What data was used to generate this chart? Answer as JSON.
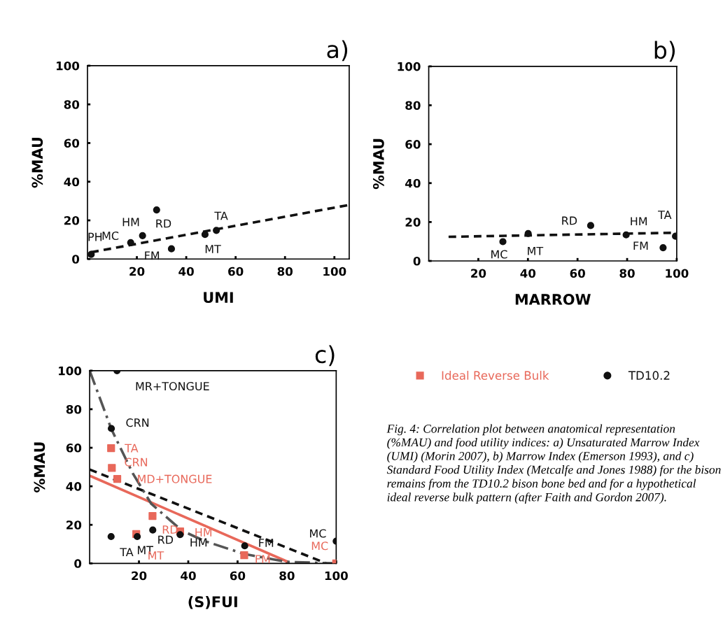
{
  "chart_data": [
    {
      "type": "scatter",
      "title": "a)",
      "xlabel": "UMI",
      "ylabel": "%MAU",
      "xlim": [
        0,
        106
      ],
      "xticks": [
        20,
        40,
        60,
        80,
        100
      ],
      "ylim": [
        0,
        100
      ],
      "yticks": [
        0,
        20,
        40,
        60,
        80,
        100
      ],
      "grid": false,
      "series": [
        {
          "type": "scatter",
          "color": "#111111",
          "marker": "circle",
          "x": [
            1.5,
            17.5,
            22.3,
            28,
            34,
            47.6,
            52.2
          ],
          "values": [
            2.4,
            8.5,
            12.1,
            25.4,
            5.3,
            12.7,
            14.8
          ]
        },
        {
          "type": "line",
          "color": "#111111",
          "line_style": "dashed",
          "x": [
            1.5,
            106
          ],
          "values": [
            3.5,
            28
          ]
        }
      ],
      "annotations": [
        {
          "text": "PH",
          "x": 1.5,
          "y": 2.4
        },
        {
          "text": "MC",
          "x": 17.5,
          "y": 8.5
        },
        {
          "text": "HM",
          "x": 22.3,
          "y": 12.1
        },
        {
          "text": "RD",
          "x": 28,
          "y": 25.4
        },
        {
          "text": "FM",
          "x": 34,
          "y": 5.3
        },
        {
          "text": "MT",
          "x": 47.6,
          "y": 12.7
        },
        {
          "text": "TA",
          "x": 52.2,
          "y": 14.8
        }
      ]
    },
    {
      "type": "scatter",
      "title": "b)",
      "xlabel": "MARROW",
      "ylabel": "%MAU",
      "xlim": [
        0,
        100
      ],
      "xticks": [
        20,
        40,
        60,
        80,
        100
      ],
      "ylim": [
        0,
        100
      ],
      "yticks": [
        0,
        20,
        40,
        60,
        80,
        100
      ],
      "grid": false,
      "series": [
        {
          "type": "scatter",
          "color": "#111111",
          "marker": "circle",
          "x": [
            29.9,
            40.1,
            65.3,
            79.6,
            94.5,
            99.5
          ],
          "values": [
            9.9,
            14.1,
            18.2,
            13.4,
            6.8,
            12.7
          ]
        },
        {
          "type": "line",
          "color": "#111111",
          "line_style": "dashed",
          "x": [
            8,
            100
          ],
          "values": [
            12.4,
            14.5
          ]
        }
      ],
      "annotations": [
        {
          "text": "MC",
          "x": 29.9,
          "y": 9.9
        },
        {
          "text": "MT",
          "x": 40.1,
          "y": 14.1
        },
        {
          "text": "RD",
          "x": 65.3,
          "y": 18.2
        },
        {
          "text": "HM",
          "x": 79.6,
          "y": 13.4
        },
        {
          "text": "FM",
          "x": 94.5,
          "y": 6.8
        },
        {
          "text": "TA",
          "x": 99.5,
          "y": 12.7
        }
      ]
    },
    {
      "type": "scatter",
      "title": "c)",
      "xlabel": "(S)FUI",
      "ylabel": "%MAU",
      "xlim": [
        0,
        100
      ],
      "xticks": [
        20,
        40,
        60,
        80,
        100
      ],
      "ylim": [
        0,
        100
      ],
      "yticks": [
        0,
        20,
        40,
        60,
        80,
        100
      ],
      "grid": false,
      "legend": "right",
      "series": [
        {
          "type": "scatter",
          "name": "Ideal Reverse Bulk",
          "color": "#e8685a",
          "marker": "square",
          "x": [
            8.7,
            9.0,
            11.2,
            25.5,
            18.9,
            36.7,
            62.7,
            100
          ],
          "values": [
            59.8,
            49.5,
            43.8,
            24.6,
            15.2,
            16.6,
            4.2,
            0
          ]
        },
        {
          "type": "scatter",
          "name": "TD10.2",
          "color": "#111111",
          "marker": "circle",
          "x": [
            11.1,
            8.8,
            8.7,
            19.3,
            25.6,
            36.7,
            62.9,
            100
          ],
          "values": [
            100,
            70,
            13.9,
            13.9,
            17.3,
            14.9,
            9.1,
            11.5
          ]
        },
        {
          "type": "line",
          "color": "#111111",
          "line_style": "dashed",
          "x": [
            0,
            96
          ],
          "values": [
            48.7,
            0
          ]
        },
        {
          "type": "line",
          "color": "#e8685a",
          "line_style": "solid",
          "x": [
            0,
            80
          ],
          "values": [
            45.5,
            1
          ]
        },
        {
          "type": "line",
          "color": "#555555",
          "line_style": "dashdot",
          "x": [
            0,
            8.8,
            17.5,
            25,
            37.4,
            46.8,
            62.9,
            79.8,
            100
          ],
          "values": [
            100,
            69.7,
            46.7,
            30.9,
            17,
            11.5,
            4.8,
            0.8,
            0
          ]
        }
      ],
      "annotations": [
        {
          "text": "MR+TONGUE",
          "x": 11.1,
          "y": 100
        },
        {
          "text": "CRN",
          "x": 8.8,
          "y": 70
        },
        {
          "text": "TA",
          "x": 8.7,
          "y": 13.9
        },
        {
          "text": "MT",
          "x": 19.3,
          "y": 13.9
        },
        {
          "text": "RD",
          "x": 25.6,
          "y": 17.3
        },
        {
          "text": "HM",
          "x": 36.7,
          "y": 14.9
        },
        {
          "text": "FM",
          "x": 62.9,
          "y": 9.1
        },
        {
          "text": "MC",
          "x": 100,
          "y": 11.5
        },
        {
          "text": "TA",
          "x": 8.7,
          "y": 59.8
        },
        {
          "text": "CRN",
          "x": 9.0,
          "y": 49.5
        },
        {
          "text": "MD+TONGUE",
          "x": 11.2,
          "y": 43.8
        },
        {
          "text": "RD",
          "x": 25.5,
          "y": 24.6
        },
        {
          "text": "MT",
          "x": 18.9,
          "y": 15.2
        },
        {
          "text": "HM",
          "x": 36.7,
          "y": 16.6
        },
        {
          "text": "FM",
          "x": 62.7,
          "y": 4.2
        },
        {
          "text": "MC",
          "x": 100,
          "y": 0
        },
        "Fig. 4: Correlation plot between anatomical representation (%MAU) and food utility indices: a) Unsaturated Marrow Index (UMI) (Morin 2007), b) Marrow Index (Emerson 1993), and c) Standard Food Utility Index (Metcalfe and Jones 1988) for the bison remains from the TD10.2 bison bone bed and for a hypothetical ideal reverse bulk pattern (after Faith and Gordon 2007)."
      ]
    }
  ]
}
